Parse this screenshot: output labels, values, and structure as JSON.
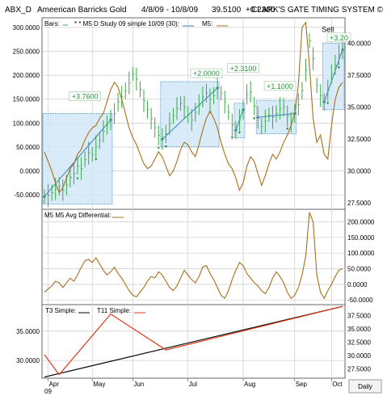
{
  "header": {
    "symbol": "ABX_D",
    "name": "Ameerican Barricks Gold",
    "range": "4/8/09 - 10/8/09",
    "price": "39.5100",
    "change": "+0.2300",
    "system": "CLARK'S GATE TIMING SYSTEM ©"
  },
  "colors": {
    "bars": "#3aa84a",
    "study": "#3d7fc0",
    "m5": "#a86f1c",
    "t3": "#000000",
    "t11": "#e03a1a",
    "box_fill": "#cfe6f6",
    "box_edge": "#4f93c9",
    "label_text": "#1f9a32",
    "grid": "#cccccc"
  },
  "chart_data": [
    {
      "type": "line",
      "panel": "price",
      "legend": {
        "bars": "Bars:",
        "study": "* * M5 D Study 09 simple 10/09 (30):",
        "m5": "M5:"
      },
      "left_axis": {
        "ticks": [
          "300.0000",
          "250.0000",
          "200.0000",
          "150.0000",
          "100.0000",
          "50.0000",
          "0.0000",
          "-50.0000"
        ],
        "ylim": [
          -80,
          320
        ]
      },
      "right_axis": {
        "ticks": [
          "40.0000",
          "37.5000",
          "35.0000",
          "32.5000",
          "30.0000",
          "27.5000"
        ],
        "ylim": [
          27,
          42
        ]
      },
      "annotations": [
        "+3.7600",
        "+2.0000",
        "+2.3100",
        "+1.1000",
        "+3.20",
        "Sell"
      ],
      "price_series": [
        28.0,
        28.1,
        28.3,
        28.6,
        28.8,
        28.5,
        28.9,
        29.5,
        29.8,
        30.4,
        30.2,
        30.9,
        31.4,
        31.3,
        31.9,
        32.4,
        33.1,
        33.6,
        34.0,
        34.5,
        35.4,
        35.8,
        36.3,
        36.9,
        37.6,
        37.2,
        36.4,
        35.5,
        34.8,
        34.1,
        33.4,
        32.8,
        32.5,
        32.9,
        33.7,
        34.3,
        34.9,
        35.3,
        35.0,
        34.4,
        34.0,
        34.6,
        35.2,
        35.8,
        36.1,
        35.6,
        35.9,
        36.5,
        36.1,
        35.4,
        34.6,
        33.6,
        33.2,
        34.0,
        34.8,
        36.0,
        36.2,
        35.1,
        34.2,
        33.5,
        33.9,
        34.4,
        34.2,
        34.5,
        34.9,
        35.0,
        34.3,
        33.8,
        34.5,
        35.2,
        36.3,
        37.9,
        40.2,
        38.8,
        36.7,
        35.9,
        35.4,
        36.3,
        37.6,
        38.3,
        39.1,
        39.5
      ],
      "m5_series": [
        40,
        20,
        0,
        -25,
        -45,
        -35,
        -15,
        5,
        15,
        35,
        45,
        65,
        80,
        90,
        95,
        110,
        120,
        145,
        170,
        185,
        175,
        150,
        120,
        90,
        70,
        55,
        35,
        15,
        5,
        10,
        25,
        40,
        30,
        10,
        -10,
        0,
        20,
        45,
        60,
        55,
        40,
        30,
        55,
        85,
        110,
        125,
        110,
        90,
        60,
        35,
        15,
        5,
        -15,
        -40,
        -25,
        10,
        30,
        20,
        -5,
        -30,
        -10,
        15,
        35,
        25,
        40,
        60,
        75,
        95,
        120,
        180,
        300,
        310,
        220,
        110,
        60,
        75,
        35,
        25,
        95,
        150,
        175,
        185
      ]
    },
    {
      "type": "line",
      "panel": "oscillator",
      "legend": "M5 M5 Avg Differential:",
      "right_axis": {
        "ticks": [
          "200.0000",
          "150.0000",
          "100.0000",
          "50.0000",
          "0.0000",
          "-50.0000"
        ],
        "ylim": [
          -65,
          240
        ]
      },
      "series": [
        {
          "name": "M5 M5 Avg Differential",
          "values": [
            -25,
            -15,
            -5,
            10,
            5,
            -10,
            5,
            20,
            10,
            30,
            55,
            75,
            80,
            70,
            85,
            65,
            45,
            30,
            40,
            55,
            35,
            20,
            0,
            -20,
            -35,
            -40,
            -25,
            -10,
            10,
            25,
            20,
            40,
            30,
            10,
            -10,
            -20,
            -5,
            20,
            45,
            30,
            15,
            5,
            25,
            55,
            60,
            35,
            15,
            -10,
            -35,
            -45,
            -20,
            15,
            45,
            70,
            60,
            35,
            20,
            5,
            -5,
            -20,
            -30,
            -10,
            20,
            40,
            25,
            5,
            -25,
            -45,
            -35,
            -10,
            30,
            90,
            230,
            200,
            30,
            -25,
            -45,
            -20,
            0,
            25,
            45,
            50
          ]
        }
      ]
    },
    {
      "type": "line",
      "panel": "moving-averages",
      "legend": {
        "t3": "T3 Simple:",
        "t11": "T11 Simple:"
      },
      "left_axis": {
        "ticks": [
          "35.0000",
          "30.0000"
        ],
        "ylim": [
          27,
          39.5
        ]
      },
      "right_axis": {
        "ticks": [
          "37.5000",
          "35.0000",
          "32.5000",
          "30.0000",
          "27.5000"
        ],
        "ylim": [
          25.8,
          39.5
        ]
      },
      "series": [
        {
          "name": "T3 Simple",
          "x": [
            0,
            81
          ],
          "values": [
            27.2,
            39.2
          ]
        },
        {
          "name": "T11 Simple",
          "x": [
            0,
            4,
            18,
            33,
            81
          ],
          "values": [
            31.0,
            27.6,
            37.9,
            31.8,
            39.2
          ]
        }
      ]
    }
  ],
  "time_axis": {
    "months": [
      "Apr",
      "May",
      "Jun",
      "Jul",
      "Aug",
      "Sep",
      "Oct"
    ],
    "year": "09",
    "daily_button": "Daily"
  }
}
